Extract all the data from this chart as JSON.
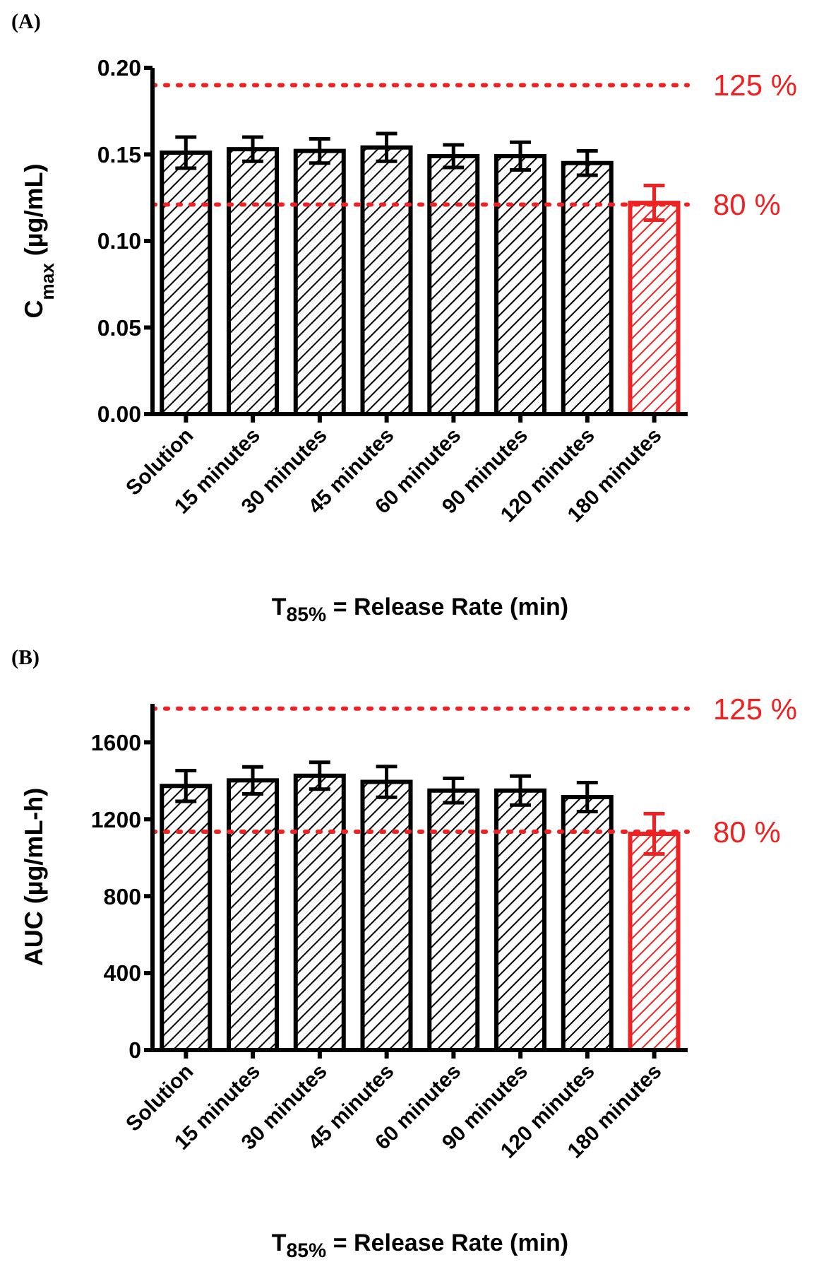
{
  "chart_data": [
    {
      "type": "bar",
      "title": "(A)",
      "xlabel": "T$_{85%}$ = Release Rate (min)",
      "ylabel": "C$_{max}$ (µg/mL)",
      "categories": [
        "Solution",
        "15 minutes",
        "30 minutes",
        "45 minutes",
        "60 minutes",
        "90 minutes",
        "120 minutes",
        "180 minutes"
      ],
      "values": [
        0.151,
        0.153,
        0.152,
        0.154,
        0.149,
        0.149,
        0.145,
        0.122
      ],
      "errors": [
        0.009,
        0.007,
        0.007,
        0.008,
        0.0065,
        0.008,
        0.007,
        0.01
      ],
      "colors": [
        "#000000",
        "#000000",
        "#000000",
        "#000000",
        "#000000",
        "#000000",
        "#000000",
        "#ee2222"
      ],
      "ylim": [
        0,
        0.2
      ],
      "yticks": [
        {
          "value": 0,
          "label": "0.00"
        },
        {
          "value": 0.05,
          "label": "0.05"
        },
        {
          "value": 0.1,
          "label": "0.10"
        },
        {
          "value": 0.15,
          "label": "0.15"
        },
        {
          "value": 0.2,
          "label": "0.20"
        }
      ],
      "ref_lines": [
        {
          "axis": "y",
          "value": 0.19,
          "color": "#ee2222",
          "line_style": "dotted"
        },
        {
          "axis": "y",
          "value": 0.121,
          "color": "#ee2222",
          "line_style": "dotted"
        }
      ],
      "annotations": [
        "125 %",
        "80 %"
      ],
      "grid": false,
      "legend": false
    },
    {
      "type": "bar",
      "title": "(B)",
      "xlabel": "T$_{85%}$ = Release Rate (min)",
      "ylabel": "AUC (µg/mL-h)",
      "categories": [
        "Solution",
        "15 minutes",
        "30 minutes",
        "45 minutes",
        "60 minutes",
        "90 minutes",
        "120 minutes",
        "180 minutes"
      ],
      "values": [
        1373,
        1402,
        1426,
        1394,
        1349,
        1349,
        1315,
        1124
      ],
      "errors": [
        80,
        70,
        70,
        80,
        63,
        75,
        75,
        105
      ],
      "colors": [
        "#000000",
        "#000000",
        "#000000",
        "#000000",
        "#000000",
        "#000000",
        "#000000",
        "#ee2222"
      ],
      "ylim": [
        0,
        1800
      ],
      "yticks": [
        0,
        400,
        800,
        1200,
        1600
      ],
      "ref_lines": [
        {
          "axis": "y",
          "value": 1775,
          "color": "#ee2222",
          "line_style": "dotted"
        },
        {
          "axis": "y",
          "value": 1135,
          "color": "#ee2222",
          "line_style": "dotted"
        }
      ],
      "annotations": [
        "125 %",
        "80 %"
      ],
      "grid": false,
      "legend": false
    }
  ]
}
